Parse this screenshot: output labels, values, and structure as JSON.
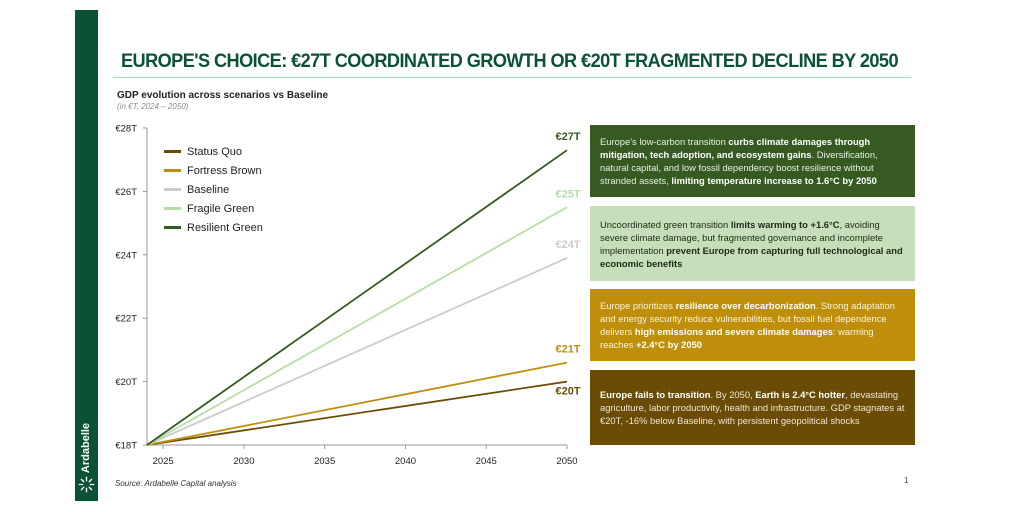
{
  "brand": {
    "name": "Ardabelle",
    "icon": "ardabelle-sunburst-logo"
  },
  "page_title": "EUROPE'S CHOICE: €27T COORDINATED GROWTH OR €20T FRAGMENTED DECLINE BY 2050",
  "chart_subtitle": "GDP evolution across scenarios vs Baseline",
  "chart_unit_note": "(in €T, 2024 – 2050)",
  "colors": {
    "brand_green": "#0b5235",
    "status_quo": "#6a4c07",
    "fortress_brown": "#bf8f0b",
    "baseline": "#cccccc",
    "fragile_green": "#b7dca7",
    "resilient_green": "#375a23"
  },
  "chart_data": {
    "type": "line",
    "title": "GDP evolution across scenarios vs Baseline",
    "subtitle": "(in €T, 2024 – 2050)",
    "xlabel": "",
    "ylabel": "",
    "x": [
      2024,
      2050
    ],
    "xlim": [
      2024,
      2050
    ],
    "ylim": [
      18,
      28
    ],
    "x_ticks": [
      2025,
      2030,
      2035,
      2040,
      2045,
      2050
    ],
    "x_tick_labels": [
      "2025",
      "2030",
      "2035",
      "2040",
      "2045",
      "2050"
    ],
    "y_ticks": [
      18,
      20,
      22,
      24,
      26,
      28
    ],
    "y_tick_labels": [
      "€18T",
      "€20T",
      "€22T",
      "€24T",
      "€26T",
      "€28T"
    ],
    "grid": false,
    "legend_position": "top-left",
    "series": [
      {
        "name": "Status Quo",
        "color": "#6a4c07",
        "values": [
          18.0,
          20.0
        ],
        "end_label": "€20T"
      },
      {
        "name": "Fortress Brown",
        "color": "#bf8f0b",
        "values": [
          18.0,
          20.6
        ],
        "end_label": "€21T"
      },
      {
        "name": "Baseline",
        "color": "#cccccc",
        "values": [
          18.0,
          23.9
        ],
        "end_label": "€24T"
      },
      {
        "name": "Fragile Green",
        "color": "#b7dca7",
        "values": [
          18.0,
          25.5
        ],
        "end_label": "€25T"
      },
      {
        "name": "Resilient Green",
        "color": "#375a23",
        "values": [
          18.0,
          27.3
        ],
        "end_label": "€27T"
      }
    ]
  },
  "scenario_cards": [
    {
      "scenario": "Resilient Green",
      "segments": [
        {
          "text": "Europe's low-carbon transition ",
          "bold": false
        },
        {
          "text": "curbs climate damages through mitigation, tech adoption, and ecosystem gains",
          "bold": true
        },
        {
          "text": ". Diversification, natural capital, and low fossil dependency boost resilience without stranded assets, ",
          "bold": false
        },
        {
          "text": "limiting temperature increase to 1.6°C by 2050",
          "bold": true
        }
      ]
    },
    {
      "scenario": "Fragile Green",
      "segments": [
        {
          "text": "Uncoordinated green transition ",
          "bold": false
        },
        {
          "text": "limits warming to +1.6°C",
          "bold": true
        },
        {
          "text": ", avoiding severe climate damage, but fragmented governance and incomplete implementation ",
          "bold": false
        },
        {
          "text": "prevent Europe from capturing full technological and economic benefits",
          "bold": true
        }
      ]
    },
    {
      "scenario": "Fortress Brown",
      "segments": [
        {
          "text": "Europe prioritizes ",
          "bold": false
        },
        {
          "text": "resilience over decarbonization",
          "bold": true
        },
        {
          "text": ". Strong adaptation and energy security reduce vulnerabilities, but fossil fuel dependence delivers ",
          "bold": false
        },
        {
          "text": "high emissions and severe climate damages",
          "bold": true
        },
        {
          "text": ": warming reaches ",
          "bold": false
        },
        {
          "text": "+2.4°C by 2050",
          "bold": true
        }
      ]
    },
    {
      "scenario": "Status Quo",
      "segments": [
        {
          "text": "Europe fails to transition",
          "bold": true
        },
        {
          "text": ". By 2050, ",
          "bold": false
        },
        {
          "text": "Earth is 2.4°C hotter",
          "bold": true
        },
        {
          "text": ", devastating agriculture, labor productivity, health and infrastructure. GDP stagnates at €20T, -16% below Baseline, with persistent geopolitical shocks",
          "bold": false
        }
      ]
    }
  ],
  "source": "Source: Ardabelle Capital analysis",
  "page_number": "1"
}
